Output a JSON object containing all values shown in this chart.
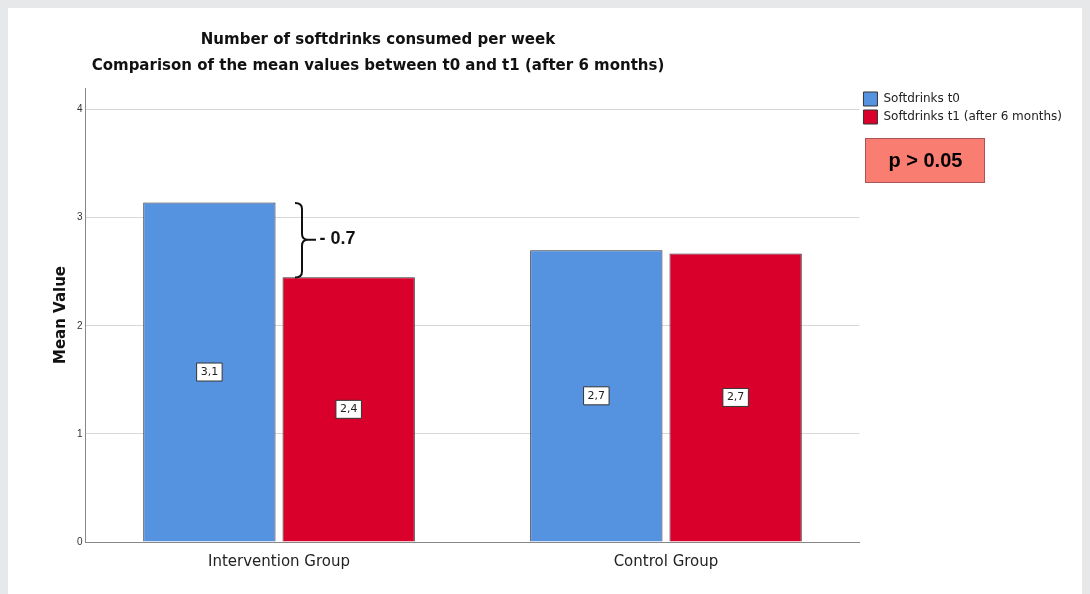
{
  "chart_data": {
    "type": "bar",
    "title": "Number of softdrinks consumed per week",
    "subtitle": "Comparison of the mean values between t0 and t1 (after 6 months)",
    "ylabel": "Mean Value",
    "categories": [
      "Intervention Group",
      "Control Group"
    ],
    "series": [
      {
        "name": "Softdrinks t0",
        "color": "#5592e0",
        "values": [
          3.14,
          2.7
        ],
        "value_labels": [
          "3,1",
          "2,7"
        ]
      },
      {
        "name": "Softdrinks t1 (after 6 months)",
        "color": "#d9002b",
        "values": [
          2.45,
          2.67
        ],
        "value_labels": [
          "2,4",
          "2,7"
        ]
      }
    ],
    "ylim": [
      0,
      4.2
    ],
    "yticks": [
      0,
      1,
      2,
      3,
      4
    ],
    "grid": "y",
    "legend": "top right",
    "annotations": [
      {
        "text": "- 0.7",
        "x": "Intervention Group",
        "y": 2.8
      },
      "p > 0.05"
    ]
  }
}
